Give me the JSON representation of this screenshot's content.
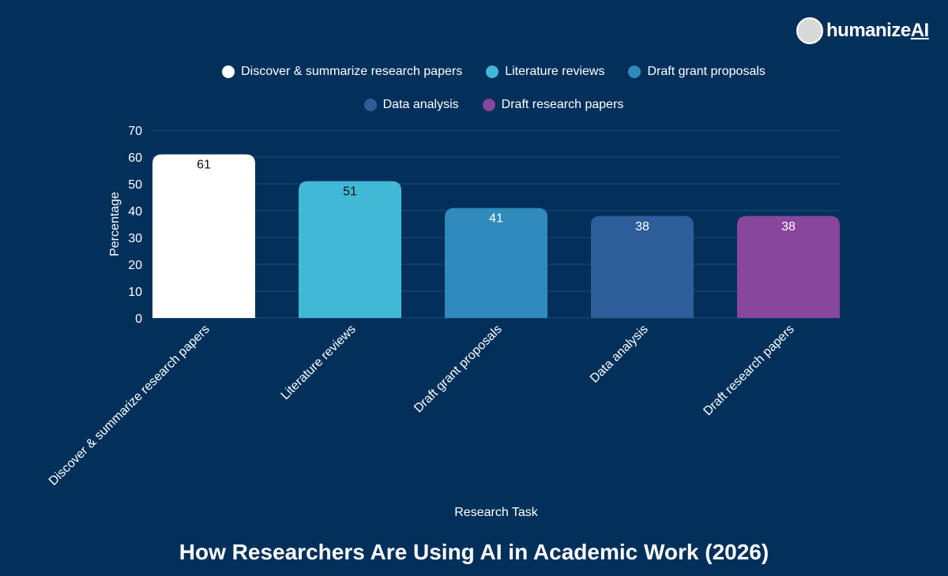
{
  "logo": {
    "text": "humanize",
    "accent": "AI"
  },
  "chart_data": {
    "type": "bar",
    "title": "How Researchers Are Using AI in Academic Work (2026)",
    "xlabel": "Research Task",
    "ylabel": "Percentage",
    "ylim": [
      0,
      70
    ],
    "yticks": [
      0,
      10,
      20,
      30,
      40,
      50,
      60,
      70
    ],
    "grid": true,
    "legend_position": "top",
    "categories": [
      "Discover & summarize research papers",
      "Literature reviews",
      "Draft grant proposals",
      "Data analysis",
      "Draft research papers"
    ],
    "values": [
      61,
      51,
      41,
      38,
      38
    ],
    "colors": [
      "#ffffff",
      "#42b8d7",
      "#2e8bbb",
      "#2e5e99",
      "#88469c"
    ],
    "label_colors": [
      "#111111",
      "#111111",
      "#ffffff",
      "#ffffff",
      "#ffffff"
    ]
  }
}
